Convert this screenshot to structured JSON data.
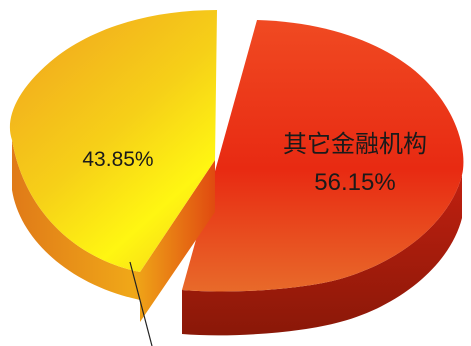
{
  "chart_data": {
    "type": "pie",
    "style": "3d-exploded",
    "slices": [
      {
        "label": "",
        "value": 43.85,
        "display": "43.85%",
        "color_top": "#F0B020",
        "color_side": "#E07810",
        "color_highlight": "#FFF210"
      },
      {
        "label": "其它金融机构",
        "value": 56.15,
        "display": "56.15%",
        "color_top": "#E82010",
        "color_side": "#A01808",
        "color_highlight": "#F08030"
      }
    ],
    "title": "",
    "legend": "none"
  }
}
